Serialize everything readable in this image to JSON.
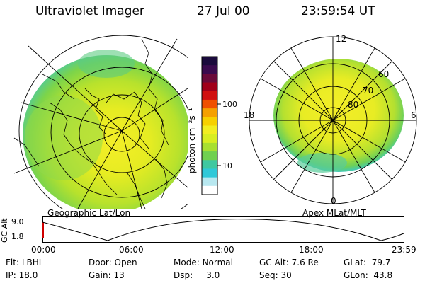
{
  "header": {
    "instrument": "Ultraviolet Imager",
    "date": "27 Jul 00",
    "time": "23:59:54 UT"
  },
  "colorbar": {
    "unit_label": "photon cm⁻²s⁻¹",
    "ticks": [
      "100",
      "10"
    ],
    "colors": [
      "#1a0a3c",
      "#3a0a4e",
      "#6a0a3a",
      "#a0001a",
      "#d01010",
      "#f05000",
      "#f5a000",
      "#f7d000",
      "#f2ee20",
      "#d8ee20",
      "#a8e030",
      "#70d050",
      "#40c8a0",
      "#30c8d8",
      "#b8e8f0",
      "#ffffff"
    ]
  },
  "geographic": {
    "label": "Geographic Lat/Lon"
  },
  "apex": {
    "label": "Apex MLat/MLT",
    "mlt_labels": [
      "12",
      "18",
      "6",
      "0"
    ],
    "lat_labels": [
      "60",
      "70",
      "80"
    ]
  },
  "altitude_plot": {
    "axis_label": "GC Alt",
    "y_ticks": [
      "9.0",
      "1.8"
    ],
    "x_ticks": [
      "00:00",
      "06:00",
      "12:00",
      "18:00",
      "23:59"
    ]
  },
  "status": {
    "filter": {
      "label": "Flt:",
      "value": "LBHL"
    },
    "door": {
      "label": "Door:",
      "value": "Open"
    },
    "mode": {
      "label": "Mode:",
      "value": "Normal"
    },
    "gc_alt": {
      "label": "GC Alt:",
      "value": "7.6 Re"
    },
    "glat": {
      "label": "GLat:",
      "value": "79.7"
    },
    "ip": {
      "label": "IP:",
      "value": "18.0"
    },
    "gain": {
      "label": "Gain:",
      "value": "13"
    },
    "dsp": {
      "label": "Dsp:",
      "value": "3.0"
    },
    "seq": {
      "label": "Seq:",
      "value": "30"
    },
    "glon": {
      "label": "GLon:",
      "value": "43.8"
    }
  }
}
